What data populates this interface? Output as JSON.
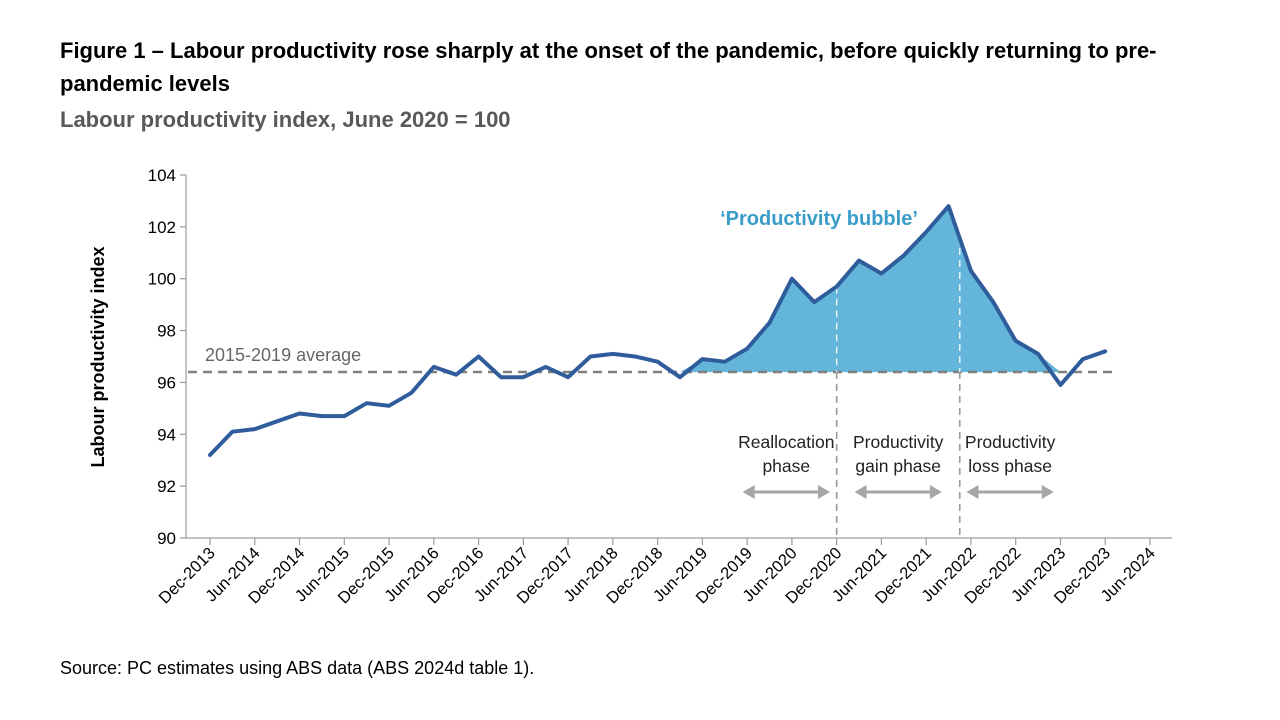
{
  "title": "Figure 1 – Labour productivity rose sharply at the onset of the pandemic, before quickly returning to pre-pandemic levels",
  "subtitle": "Labour productivity index, June 2020 = 100",
  "source": "Source: PC estimates using ABS data (ABS 2024d table 1).",
  "chart_data": {
    "type": "line",
    "ylabel": "Labour productivity index",
    "ylim": [
      90,
      104
    ],
    "yticks": [
      90,
      92,
      94,
      96,
      98,
      100,
      102,
      104
    ],
    "xlim": [
      0,
      42
    ],
    "xticks": [
      {
        "q": 0,
        "label": "Dec-2013"
      },
      {
        "q": 2,
        "label": "Jun-2014"
      },
      {
        "q": 4,
        "label": "Dec-2014"
      },
      {
        "q": 6,
        "label": "Jun-2015"
      },
      {
        "q": 8,
        "label": "Dec-2015"
      },
      {
        "q": 10,
        "label": "Jun-2016"
      },
      {
        "q": 12,
        "label": "Dec-2016"
      },
      {
        "q": 14,
        "label": "Jun-2017"
      },
      {
        "q": 16,
        "label": "Dec-2017"
      },
      {
        "q": 18,
        "label": "Jun-2018"
      },
      {
        "q": 20,
        "label": "Dec-2018"
      },
      {
        "q": 22,
        "label": "Jun-2019"
      },
      {
        "q": 24,
        "label": "Dec-2019"
      },
      {
        "q": 26,
        "label": "Jun-2020"
      },
      {
        "q": 28,
        "label": "Dec-2020"
      },
      {
        "q": 30,
        "label": "Jun-2021"
      },
      {
        "q": 32,
        "label": "Dec-2021"
      },
      {
        "q": 34,
        "label": "Jun-2022"
      },
      {
        "q": 36,
        "label": "Dec-2022"
      },
      {
        "q": 38,
        "label": "Jun-2023"
      },
      {
        "q": 40,
        "label": "Dec-2023"
      },
      {
        "q": 42,
        "label": "Jun-2024"
      }
    ],
    "series": [
      {
        "name": "Labour productivity index",
        "color": "#2f5d9c",
        "values": [
          93.2,
          94.1,
          94.2,
          94.5,
          94.8,
          94.7,
          94.7,
          95.2,
          95.1,
          95.6,
          96.6,
          96.3,
          97.0,
          96.2,
          96.2,
          96.6,
          96.2,
          97.0,
          97.1,
          97.0,
          96.8,
          96.2,
          96.9,
          96.8,
          97.3,
          98.3,
          100.0,
          99.1,
          99.7,
          100.7,
          100.2,
          100.9,
          101.8,
          102.8,
          100.3,
          99.1,
          97.6,
          97.1,
          95.9,
          96.9,
          97.2
        ]
      }
    ],
    "average": {
      "label": "2015-2019 average",
      "value": 96.4,
      "color": "#808080"
    },
    "bubble": {
      "label": "‘Productivity bubble’",
      "fill": "#63b6d9",
      "label_color": "#3a9cc9",
      "from_q": 21,
      "to_q": 38
    },
    "phase_dividers": [
      28,
      33.5
    ],
    "phases": [
      {
        "line1": "Reallocation",
        "line2": "phase",
        "from_q": 23.8,
        "to_q": 27.7
      },
      {
        "line1": "Productivity",
        "line2": "gain phase",
        "from_q": 28.8,
        "to_q": 32.7
      },
      {
        "line1": "Productivity",
        "line2": "loss phase",
        "from_q": 33.8,
        "to_q": 37.7
      }
    ]
  }
}
